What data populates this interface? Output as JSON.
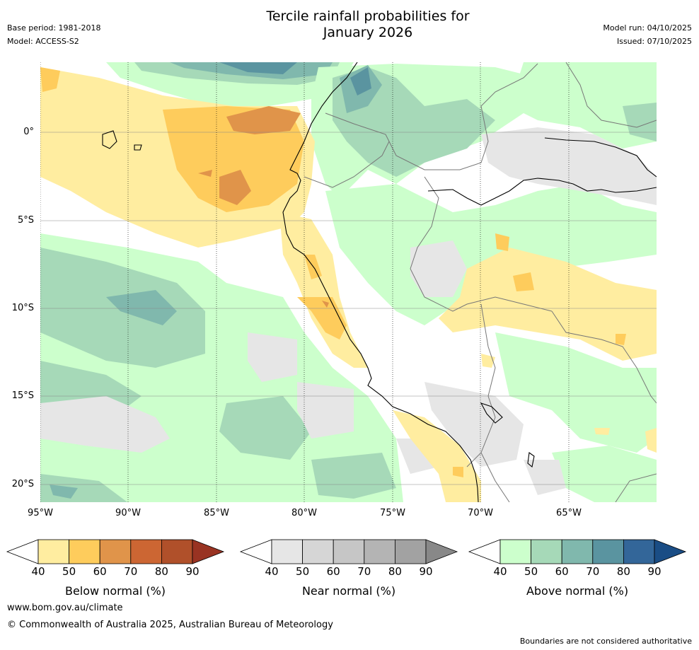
{
  "header": {
    "title_line1": "Tercile rainfall probabilities for",
    "title_line2": "January 2026",
    "base_period": "Base period: 1981-2018",
    "model": "Model: ACCESS-S2",
    "model_run": "Model run: 04/10/2025",
    "issued": "Issued: 07/10/2025"
  },
  "map": {
    "lat_labels": [
      "0°",
      "5°S",
      "10°S",
      "15°S",
      "20°S"
    ],
    "lon_labels": [
      "95°W",
      "90°W",
      "85°W",
      "80°W",
      "75°W",
      "70°W",
      "65°W"
    ]
  },
  "colorbars": [
    {
      "label": "Below normal (%)",
      "ticks": [
        "40",
        "50",
        "60",
        "70",
        "80",
        "90"
      ],
      "colors": [
        "#ffeda0",
        "#fecc5c",
        "#e0944a",
        "#cc6633",
        "#b0502a",
        "#993322"
      ]
    },
    {
      "label": "Near normal (%)",
      "ticks": [
        "40",
        "50",
        "60",
        "70",
        "80",
        "90"
      ],
      "colors": [
        "#e6e6e6",
        "#d6d6d6",
        "#c6c6c6",
        "#b4b4b4",
        "#a2a2a2",
        "#888888"
      ]
    },
    {
      "label": "Above normal (%)",
      "ticks": [
        "40",
        "50",
        "60",
        "70",
        "80",
        "90"
      ],
      "colors": [
        "#ccffcc",
        "#a6d9b8",
        "#80b8ad",
        "#5a94a0",
        "#336699",
        "#1a4d85"
      ]
    }
  ],
  "footer": {
    "website": "www.bom.gov.au/climate",
    "copyright": "© Commonwealth of Australia 2025, Australian Bureau of Meteorology",
    "disclaimer": "Boundaries are not considered authoritative"
  }
}
